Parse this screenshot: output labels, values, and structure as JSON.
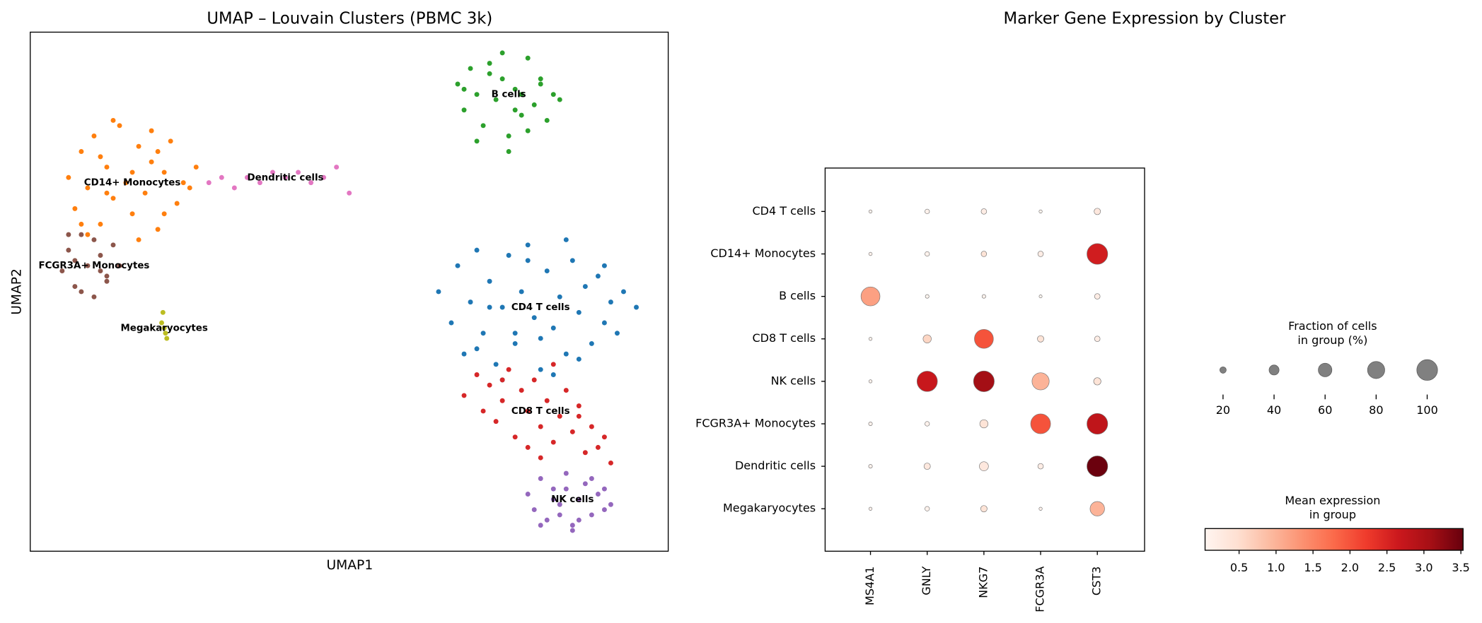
{
  "chart_data": [
    {
      "type": "scatter",
      "title": "UMAP – Louvain Clusters (PBMC 3k)",
      "xlabel": "UMAP1",
      "ylabel": "UMAP2",
      "xlim": [
        0,
        100
      ],
      "ylim": [
        0,
        100
      ],
      "labels_on_data": true,
      "series": [
        {
          "name": "CD4 T cells",
          "color": "#1f77b4",
          "x": [
            64,
            66,
            67,
            68,
            69,
            70,
            71,
            72,
            73,
            74,
            75,
            76,
            77,
            78,
            79,
            80,
            81,
            82,
            83,
            84,
            85,
            86,
            87,
            88,
            89,
            90,
            91,
            92,
            93,
            95,
            70,
            74,
            78,
            82,
            86,
            90,
            72,
            76,
            80,
            84
          ],
          "y": [
            50,
            44,
            55,
            38,
            48,
            58,
            42,
            52,
            36,
            47,
            57,
            40,
            50,
            59,
            45,
            35,
            54,
            43,
            49,
            38,
            56,
            46,
            51,
            40,
            53,
            44,
            48,
            42,
            50,
            47,
            39,
            33,
            56,
            34,
            37,
            55,
            47,
            42,
            41,
            60
          ]
        },
        {
          "name": "CD14+ Monocytes",
          "color": "#ff7f0e",
          "x": [
            6,
            7,
            8,
            9,
            10,
            11,
            12,
            13,
            14,
            15,
            16,
            17,
            18,
            19,
            20,
            21,
            22,
            23,
            24,
            25,
            26,
            9,
            13,
            17,
            21,
            11,
            15,
            19,
            8,
            12,
            16,
            20
          ],
          "y": [
            72,
            66,
            77,
            70,
            80,
            63,
            74,
            68,
            82,
            71,
            65,
            78,
            69,
            75,
            62,
            73,
            79,
            67,
            71,
            70,
            74,
            61,
            83,
            60,
            65,
            76,
            71,
            81,
            63,
            69,
            73,
            77
          ]
        },
        {
          "name": "B cells",
          "color": "#2ca02c",
          "x": [
            67,
            68,
            69,
            70,
            71,
            72,
            73,
            74,
            75,
            76,
            77,
            78,
            79,
            80,
            81,
            82,
            83,
            70,
            74,
            78,
            72,
            76,
            80,
            68,
            75,
            77
          ],
          "y": [
            90,
            85,
            93,
            88,
            82,
            94,
            87,
            91,
            80,
            89,
            84,
            95,
            86,
            90,
            83,
            88,
            87,
            79,
            96,
            81,
            92,
            85,
            91,
            89,
            77,
            88
          ]
        },
        {
          "name": "CD8 T cells",
          "color": "#d62728",
          "x": [
            68,
            70,
            71,
            72,
            73,
            74,
            75,
            76,
            77,
            78,
            79,
            80,
            81,
            82,
            83,
            84,
            85,
            86,
            87,
            88,
            89,
            90,
            91,
            74,
            78,
            82,
            86,
            80
          ],
          "y": [
            30,
            34,
            27,
            32,
            25,
            29,
            35,
            22,
            31,
            27,
            33,
            24,
            29,
            21,
            26,
            31,
            23,
            28,
            19,
            24,
            20,
            22,
            17,
            33,
            20,
            36,
            26,
            18
          ]
        },
        {
          "name": "NK cells",
          "color": "#9467bd",
          "x": [
            78,
            79,
            80,
            81,
            82,
            83,
            84,
            85,
            86,
            87,
            88,
            89,
            90,
            91,
            80,
            84,
            88,
            82,
            86,
            90,
            85,
            83
          ],
          "y": [
            11,
            8,
            14,
            6,
            12,
            9,
            15,
            5,
            10,
            13,
            7,
            11,
            8,
            9,
            5,
            12,
            14,
            10,
            6,
            12,
            4,
            7
          ]
        },
        {
          "name": "FCGR3A+ Monocytes",
          "color": "#8c564b",
          "x": [
            5,
            6,
            7,
            8,
            9,
            10,
            11,
            12,
            13,
            14,
            6,
            8,
            10,
            12,
            7,
            11
          ],
          "y": [
            54,
            58,
            51,
            61,
            55,
            49,
            57,
            53,
            59,
            55,
            61,
            50,
            60,
            52,
            56,
            54
          ]
        },
        {
          "name": "Dendritic cells",
          "color": "#e377c2",
          "x": [
            28,
            30,
            32,
            34,
            36,
            38,
            40,
            42,
            44,
            46,
            48,
            50
          ],
          "y": [
            71,
            72,
            70,
            72,
            71,
            73,
            72,
            73,
            71,
            72,
            74,
            69
          ]
        },
        {
          "name": "Megakaryocytes",
          "color": "#bcbd22",
          "x": [
            20.8,
            21.0,
            21.2,
            21.4,
            20.6
          ],
          "y": [
            46,
            43,
            42,
            41,
            44
          ]
        }
      ]
    },
    {
      "type": "dotplot",
      "title": "Marker Gene Expression by Cluster",
      "genes": [
        "MS4A1",
        "GNLY",
        "NKG7",
        "FCGR3A",
        "CST3"
      ],
      "categories": [
        "CD4 T cells",
        "CD14+ Monocytes",
        "B cells",
        "CD8 T cells",
        "NK cells",
        "FCGR3A+ Monocytes",
        "Dendritic cells",
        "Megakaryocytes"
      ],
      "fraction": [
        [
          2,
          10,
          15,
          2,
          20
        ],
        [
          3,
          10,
          15,
          15,
          100
        ],
        [
          90,
          5,
          5,
          1,
          15
        ],
        [
          2,
          30,
          90,
          20,
          15
        ],
        [
          2,
          98,
          100,
          80,
          25
        ],
        [
          5,
          10,
          30,
          95,
          100
        ],
        [
          5,
          20,
          35,
          15,
          100
        ],
        [
          2,
          10,
          20,
          2,
          65
        ]
      ],
      "expression": [
        [
          0.1,
          0.1,
          0.2,
          0.05,
          0.3
        ],
        [
          0.1,
          0.1,
          0.4,
          0.2,
          2.6
        ],
        [
          1.2,
          0.05,
          0.1,
          0.05,
          0.2
        ],
        [
          0.1,
          0.6,
          2.0,
          0.4,
          0.2
        ],
        [
          0.1,
          2.7,
          3.1,
          1.0,
          0.4
        ],
        [
          0.1,
          0.1,
          0.4,
          2.0,
          2.8
        ],
        [
          0.1,
          0.3,
          0.3,
          0.2,
          3.5
        ],
        [
          0.1,
          0.1,
          0.4,
          0.1,
          1.0
        ]
      ],
      "size_legend_title": [
        "Fraction of cells",
        "in group (%)"
      ],
      "size_ticks": [
        20,
        40,
        60,
        80,
        100
      ],
      "colorbar_title": [
        "Mean expression",
        "in group"
      ],
      "colormap": "Reds",
      "clim": [
        0.04,
        3.53
      ],
      "cticks": [
        0.5,
        {
          "value": 1,
          "label": "1.0"
        },
        1.5,
        {
          "value": 2,
          "label": "2.0"
        },
        2.5,
        {
          "value": 3,
          "label": "3.0"
        },
        3.5
      ]
    }
  ]
}
